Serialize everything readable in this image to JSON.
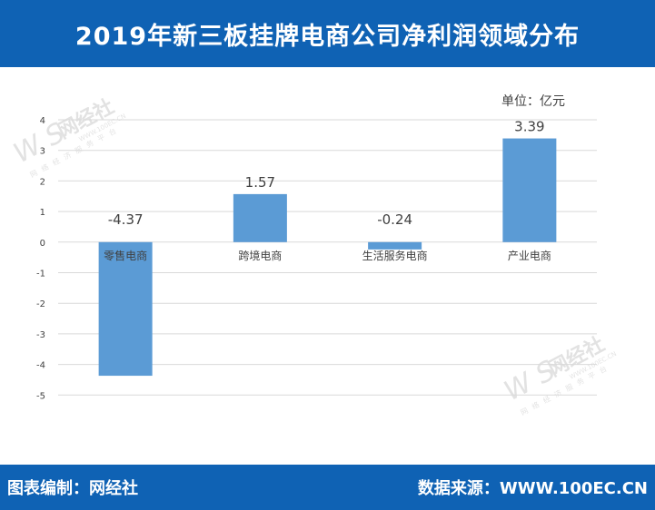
{
  "header": {
    "title": "2019年新三板挂牌电商公司净利润领域分布"
  },
  "footer": {
    "editor": "图表编制：网经社",
    "source": "数据来源：WWW.100EC.CN"
  },
  "watermark": {
    "brand": "网经社",
    "url": "WWW.100EC.CN",
    "slogan": "网络经济服务平台"
  },
  "colors": {
    "header_bg": "#0f62b4",
    "bar": "#5b9bd5",
    "grid": "#d9d9d9"
  },
  "chart_data": {
    "type": "bar",
    "unit_label": "单位：亿元",
    "categories": [
      "零售电商",
      "跨境电商",
      "生活服务电商",
      "产业电商"
    ],
    "values": [
      -4.37,
      1.57,
      -0.24,
      3.39
    ],
    "value_labels": [
      "-4.37",
      "1.57",
      "-0.24",
      "3.39"
    ],
    "yticks": [
      "4",
      "3",
      "2",
      "1",
      "0",
      "-1",
      "-2",
      "-3",
      "-4",
      "-5"
    ],
    "ylim": [
      -5,
      4
    ],
    "grid": true,
    "legend": "none"
  }
}
